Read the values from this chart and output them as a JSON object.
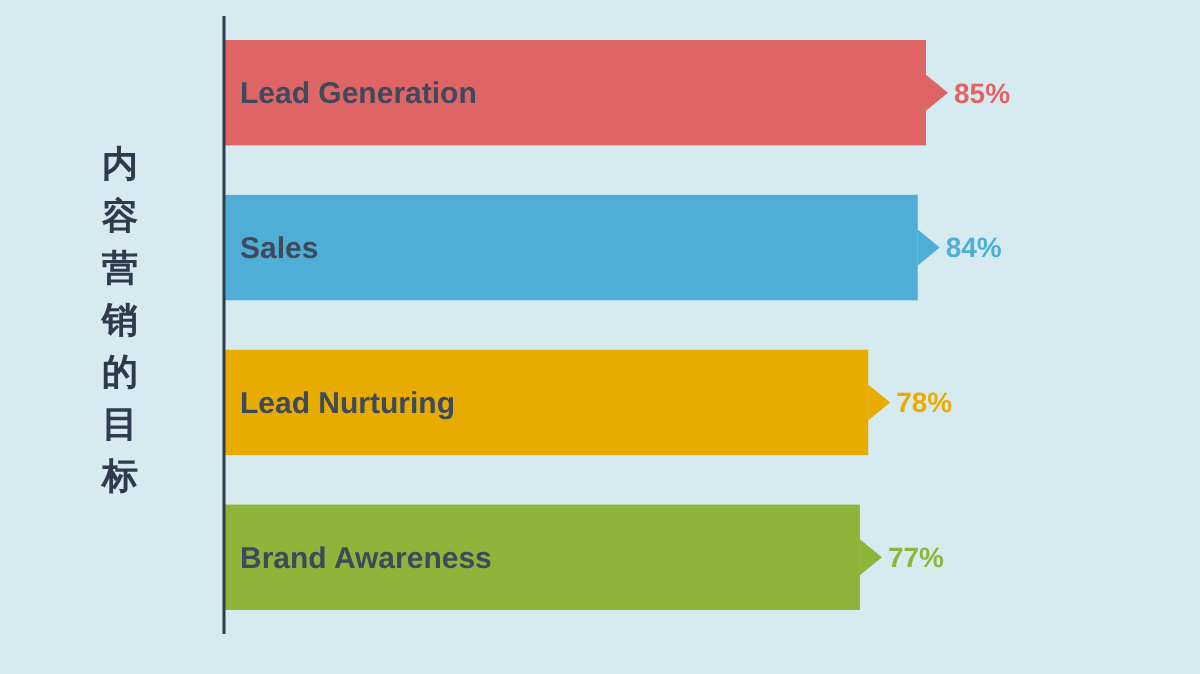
{
  "chart_data": {
    "type": "bar",
    "orientation": "horizontal",
    "ylabel": "内容营销的目标",
    "categories": [
      "Lead Generation",
      "Sales",
      "Lead Nurturing",
      "Brand Awareness"
    ],
    "values": [
      85,
      84,
      78,
      77
    ],
    "value_labels": [
      "85%",
      "84%",
      "78%",
      "77%"
    ],
    "colors": [
      "#df6465",
      "#4eaed6",
      "#e8ab00",
      "#8db53a"
    ]
  }
}
